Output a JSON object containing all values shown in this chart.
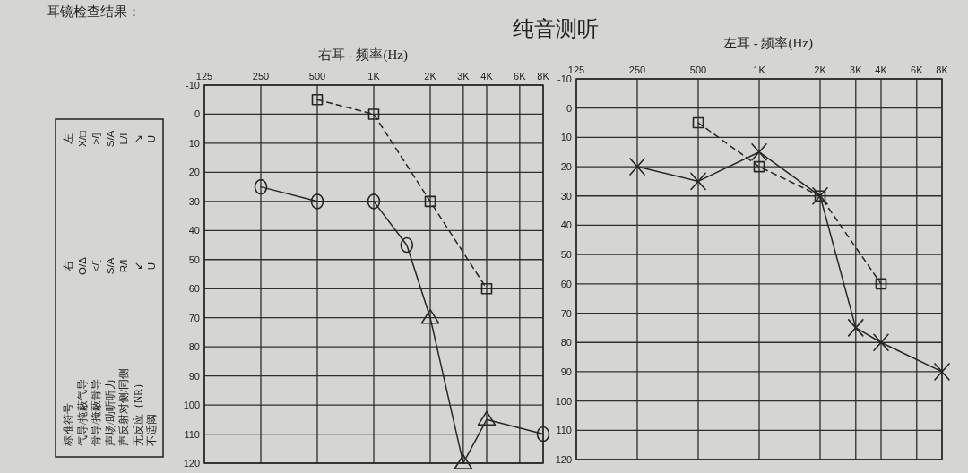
{
  "chart_data": [
    {
      "type": "other",
      "title": "纯音测听",
      "annotations": [
        "耳镜检查结果："
      ]
    },
    {
      "type": "other",
      "annotations": [
        "标准符号",
        "右",
        "左",
        "气导/掩蔽气导",
        "O/Δ",
        "X/□",
        "骨导/掩蔽骨导",
        "</[",
        ">/]",
        "声场/助听听力",
        "S/A",
        "S/A",
        "声反射对侧/同侧",
        "R/I",
        "L/I",
        "无反应（NR）",
        "↙",
        "↘",
        "不适阈",
        "U",
        "U"
      ]
    },
    {
      "type": "line",
      "xlabel": "右耳 - 频率(Hz)",
      "log": "x",
      "grid": true,
      "xlim": [
        125,
        8000
      ],
      "xticks": [
        125,
        250,
        500,
        {
          "value": 1000,
          "label": "1K"
        },
        {
          "value": 2000,
          "label": "2K"
        },
        {
          "value": 3000,
          "label": "3K"
        },
        {
          "value": 4000,
          "label": "4K"
        },
        {
          "value": 6000,
          "label": "6K"
        },
        {
          "value": 8000,
          "label": "8K"
        }
      ],
      "ylim": [
        120,
        -10
      ],
      "yticks": [
        -10,
        0,
        10,
        20,
        30,
        40,
        50,
        60,
        70,
        80,
        90,
        100,
        110,
        120
      ],
      "series": [
        {
          "type": "line",
          "color": "#262626",
          "marker": "none",
          "line_style": "solid",
          "x": [
            250,
            500,
            1000,
            1500,
            2000,
            3000,
            4000,
            8000
          ],
          "values": [
            25,
            30,
            30,
            45,
            70,
            120,
            105,
            110
          ]
        },
        {
          "type": "scatter",
          "color": "#262626",
          "marker": "circle",
          "x": [
            250,
            500,
            1000,
            1500,
            8000
          ],
          "values": [
            25,
            30,
            30,
            45,
            110
          ]
        },
        {
          "type": "scatter",
          "color": "#262626",
          "marker": "triangle",
          "x": [
            2000,
            3000,
            4000
          ],
          "values": [
            70,
            120,
            105
          ]
        },
        {
          "type": "line",
          "color": "#262626",
          "marker": "square",
          "line_style": "dashed",
          "x": [
            500,
            1000,
            2000,
            4000
          ],
          "values": [
            -5,
            0,
            30,
            60
          ]
        }
      ]
    },
    {
      "type": "line",
      "xlabel": "左耳 - 频率(Hz)",
      "log": "x",
      "grid": true,
      "xlim": [
        125,
        8000
      ],
      "xticks": [
        125,
        250,
        500,
        {
          "value": 1000,
          "label": "1K"
        },
        {
          "value": 2000,
          "label": "2K"
        },
        {
          "value": 3000,
          "label": "3K"
        },
        {
          "value": 4000,
          "label": "4K"
        },
        {
          "value": 6000,
          "label": "6K"
        },
        {
          "value": 8000,
          "label": "8K"
        }
      ],
      "ylim": [
        120,
        -10
      ],
      "yticks": [
        -10,
        0,
        10,
        20,
        30,
        40,
        50,
        60,
        70,
        80,
        90,
        100,
        110,
        120
      ],
      "series": [
        {
          "type": "line",
          "color": "#262626",
          "marker": "cross",
          "line_style": "solid",
          "x": [
            250,
            500,
            1000,
            2000,
            3000,
            4000,
            8000
          ],
          "values": [
            20,
            25,
            15,
            30,
            75,
            80,
            90
          ]
        },
        {
          "type": "line",
          "color": "#262626",
          "marker": "square",
          "line_style": "dashed",
          "x": [
            500,
            1000,
            2000,
            4000
          ],
          "values": [
            5,
            20,
            30,
            60
          ]
        }
      ]
    }
  ]
}
